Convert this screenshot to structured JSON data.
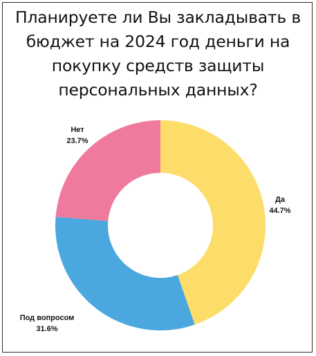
{
  "chart_data": {
    "type": "pie",
    "donut": true,
    "title_lines": [
      "Планируете ли Вы закладывать в",
      "бюджет на 2024 год деньги на",
      "покупку средств защиты",
      "персональных данных?"
    ],
    "slices": [
      {
        "label": "Да",
        "percent_text": "44.7%",
        "value": 44.7,
        "color": "#FCDD6A"
      },
      {
        "label": "Под вопросом",
        "percent_text": "31.6%",
        "value": 31.6,
        "color": "#4AA8DF"
      },
      {
        "label": "Нет",
        "percent_text": "23.7%",
        "value": 23.7,
        "color": "#F0799E"
      }
    ],
    "legend": "none",
    "start": "top, clockwise"
  }
}
